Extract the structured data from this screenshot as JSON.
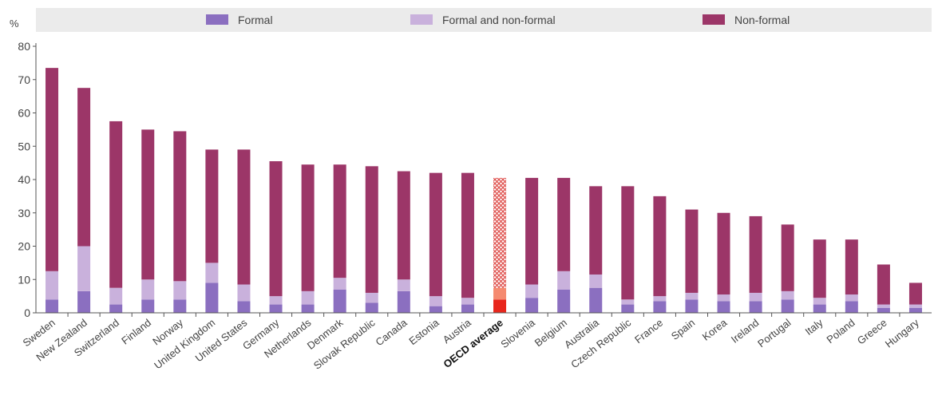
{
  "chart_data": {
    "type": "bar",
    "stacked": true,
    "ylabel": "%",
    "ylim": [
      0,
      80
    ],
    "yticks": [
      0,
      10,
      20,
      30,
      40,
      50,
      60,
      70,
      80
    ],
    "legend_position": "top",
    "grid": false,
    "categories": [
      "Sweden",
      "New Zealand",
      "Switzerland",
      "Finland",
      "Norway",
      "United Kingdom",
      "United States",
      "Germany",
      "Netherlands",
      "Denmark",
      "Slovak Republic",
      "Canada",
      "Estonia",
      "Austria",
      "OECD average",
      "Slovenia",
      "Belgium",
      "Australia",
      "Czech Republic",
      "France",
      "Spain",
      "Korea",
      "Ireland",
      "Portugal",
      "Italy",
      "Poland",
      "Greece",
      "Hungary"
    ],
    "highlight_category": "OECD average",
    "series": [
      {
        "name": "Formal",
        "color": "#8b6fc0",
        "highlight_color": "#e8261c",
        "values": [
          4,
          6.5,
          2.5,
          4,
          4,
          9,
          3.5,
          2.5,
          2.5,
          7,
          3,
          6.5,
          2,
          2.5,
          4,
          4.5,
          7,
          7.5,
          2.5,
          3.5,
          4,
          3.5,
          3.5,
          4,
          2.5,
          3.5,
          1.5,
          1.5
        ]
      },
      {
        "name": "Formal and non-formal",
        "color": "#c9b1dc",
        "highlight_color": "#f58a70",
        "values": [
          8.5,
          13.5,
          5,
          6,
          5.5,
          6,
          5,
          2.5,
          4,
          3.5,
          3,
          3.5,
          3,
          2,
          3.5,
          4,
          5.5,
          4,
          1.5,
          1.5,
          2,
          2,
          2.5,
          2.5,
          2,
          2,
          1,
          1
        ]
      },
      {
        "name": "Non-formal",
        "color": "#9c3668",
        "highlight_color": "#e05450",
        "values": [
          61,
          47.5,
          50,
          45,
          45,
          34,
          40.5,
          40.5,
          38,
          34,
          38,
          32.5,
          37,
          37.5,
          33,
          32,
          28,
          26.5,
          34,
          30,
          25,
          24.5,
          23,
          20,
          17.5,
          16.5,
          12,
          6.5
        ]
      }
    ]
  }
}
